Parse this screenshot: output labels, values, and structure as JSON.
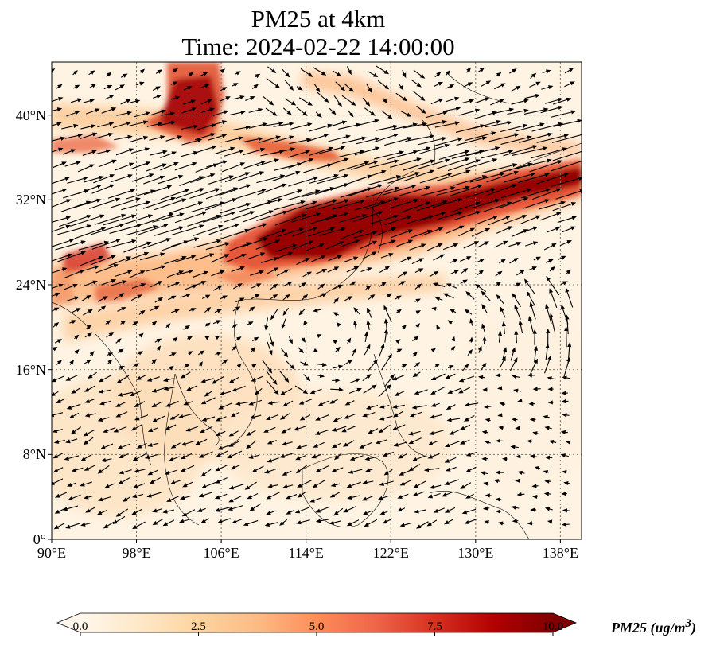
{
  "title_line1": "PM25 at 4km",
  "title_line2": "Time: 2024-02-22 14:00:00",
  "map": {
    "lon_range": [
      90,
      140
    ],
    "lat_range": [
      0,
      45
    ],
    "lat_ticks": [
      {
        "value": 40,
        "label": "40°N"
      },
      {
        "value": 32,
        "label": "32°N"
      },
      {
        "value": 24,
        "label": "24°N"
      },
      {
        "value": 16,
        "label": "16°N"
      },
      {
        "value": 8,
        "label": "8°N"
      },
      {
        "value": 0,
        "label": "0°"
      }
    ],
    "lon_ticks": [
      {
        "value": 90,
        "label": "90°E"
      },
      {
        "value": 98,
        "label": "98°E"
      },
      {
        "value": 106,
        "label": "106°E"
      },
      {
        "value": 114,
        "label": "114°E"
      },
      {
        "value": 122,
        "label": "122°E"
      },
      {
        "value": 130,
        "label": "130°E"
      },
      {
        "value": 138,
        "label": "138°E"
      }
    ],
    "gridlines": "dotted"
  },
  "colorbar": {
    "label": "PM25 (ug/m$^3$)",
    "label_text": "PM25 (ug/m",
    "label_sup": "3",
    "label_close": ")",
    "min": 0,
    "max": 10,
    "ticks": [
      "0.0",
      "2.5",
      "5.0",
      "7.5",
      "10.0"
    ],
    "colormap": "OrRd",
    "colors": [
      "#fff7ec",
      "#fee8c8",
      "#fdd49e",
      "#fdbb84",
      "#fc8d59",
      "#ef6548",
      "#d7301f",
      "#b30000",
      "#7f0000"
    ],
    "extend": "both"
  }
}
